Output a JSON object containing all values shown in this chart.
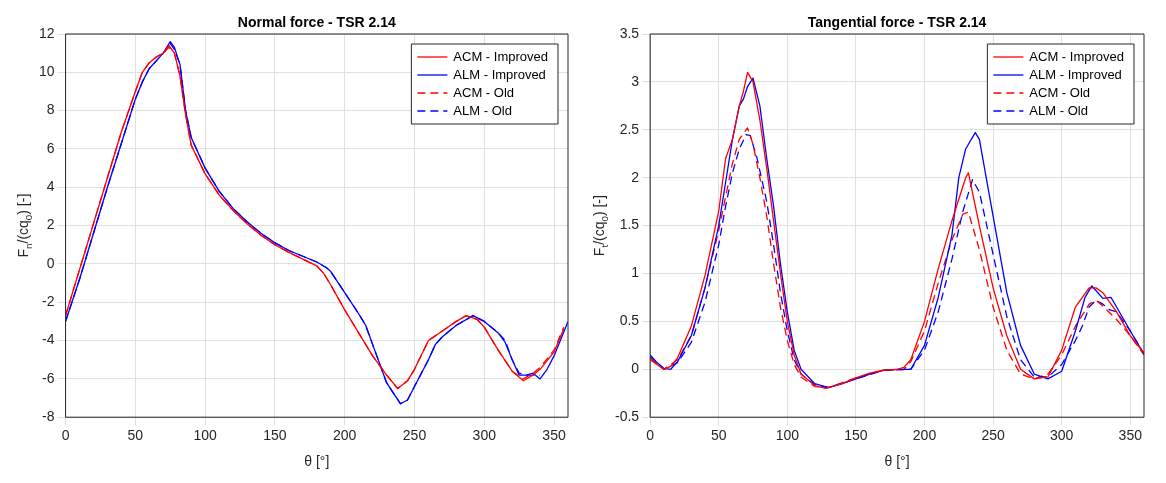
{
  "chart_data": [
    {
      "type": "line",
      "title": "Normal force - TSR 2.14",
      "xlabel": "θ [°]",
      "ylabel": "F$_{n}$/(cq$_{0}$) [-]",
      "xlim": [
        0,
        360
      ],
      "xticks": [
        0,
        50,
        100,
        150,
        200,
        250,
        300,
        350
      ],
      "ylim": [
        -8,
        12
      ],
      "yticks": [
        -8,
        -6,
        -4,
        -2,
        0,
        2,
        4,
        6,
        8,
        10,
        12
      ],
      "grid": true,
      "legend": "top right",
      "series": [
        {
          "name": "ACM - Improved",
          "color": "#ff0000",
          "line_style": "solid",
          "x": [
            0,
            10,
            20,
            30,
            40,
            50,
            55,
            60,
            65,
            70,
            74,
            78,
            82,
            86,
            90,
            100,
            110,
            120,
            130,
            140,
            150,
            160,
            170,
            180,
            185,
            190,
            200,
            210,
            220,
            230,
            238,
            245,
            250,
            260,
            270,
            280,
            287,
            295,
            300,
            310,
            320,
            328,
            335,
            340,
            350,
            357
          ],
          "values": [
            -2.7,
            -0.3,
            2.1,
            4.5,
            6.9,
            9.0,
            10.0,
            10.5,
            10.8,
            11.0,
            11.4,
            11.0,
            9.8,
            7.8,
            6.2,
            4.7,
            3.6,
            2.8,
            2.1,
            1.5,
            1.0,
            0.6,
            0.25,
            -0.1,
            -0.5,
            -1.1,
            -2.4,
            -3.6,
            -4.8,
            -5.8,
            -6.5,
            -6.1,
            -5.5,
            -4.0,
            -3.5,
            -3.0,
            -2.7,
            -2.9,
            -3.3,
            -4.5,
            -5.6,
            -6.1,
            -5.8,
            -5.5,
            -4.6,
            -3.4
          ]
        },
        {
          "name": "ALM - Improved",
          "color": "#0000ff",
          "line_style": "solid",
          "x": [
            0,
            10,
            20,
            30,
            40,
            50,
            55,
            60,
            65,
            70,
            75,
            78,
            82,
            86,
            90,
            100,
            110,
            120,
            130,
            140,
            150,
            160,
            170,
            180,
            187,
            190,
            200,
            210,
            215,
            220,
            230,
            240,
            245,
            250,
            260,
            265,
            270,
            280,
            292,
            300,
            310,
            315,
            320,
            325,
            330,
            335,
            340,
            345,
            350,
            360
          ],
          "values": [
            -3.0,
            -0.8,
            1.6,
            4.0,
            6.3,
            8.6,
            9.5,
            10.2,
            10.6,
            11.0,
            11.6,
            11.3,
            10.4,
            8.0,
            6.6,
            5.0,
            3.8,
            2.9,
            2.2,
            1.6,
            1.1,
            0.7,
            0.4,
            0.1,
            -0.2,
            -0.4,
            -1.5,
            -2.6,
            -3.2,
            -4.2,
            -6.2,
            -7.3,
            -7.1,
            -6.4,
            -5.0,
            -4.2,
            -3.8,
            -3.2,
            -2.7,
            -3.0,
            -3.6,
            -4.1,
            -5.0,
            -5.8,
            -5.8,
            -5.7,
            -6.0,
            -5.5,
            -4.8,
            -3.0
          ]
        },
        {
          "name": "ACM - Old",
          "color": "#ff0000",
          "line_style": "dashed",
          "x": [
            0,
            10,
            20,
            30,
            40,
            50,
            55,
            60,
            65,
            70,
            74,
            78,
            82,
            86,
            90,
            100,
            110,
            120,
            130,
            140,
            150,
            160,
            170,
            180,
            185,
            190,
            200,
            210,
            220,
            230,
            238,
            245,
            250,
            260,
            270,
            280,
            287,
            295,
            300,
            310,
            320,
            328,
            335,
            340,
            350,
            357
          ],
          "values": [
            -2.7,
            -0.3,
            2.1,
            4.5,
            6.9,
            9.0,
            10.0,
            10.5,
            10.8,
            11.0,
            11.3,
            11.0,
            9.8,
            7.8,
            6.2,
            4.7,
            3.6,
            2.8,
            2.1,
            1.5,
            1.0,
            0.6,
            0.25,
            -0.1,
            -0.5,
            -1.1,
            -2.4,
            -3.6,
            -4.8,
            -5.8,
            -6.5,
            -6.1,
            -5.5,
            -4.0,
            -3.5,
            -3.0,
            -2.7,
            -2.9,
            -3.3,
            -4.5,
            -5.6,
            -6.0,
            -5.7,
            -5.4,
            -4.5,
            -3.3
          ]
        },
        {
          "name": "ALM - Old",
          "color": "#0000ff",
          "line_style": "dashed",
          "x": [
            0,
            10,
            20,
            30,
            40,
            50,
            55,
            60,
            65,
            70,
            75,
            78,
            82,
            86,
            90,
            100,
            110,
            120,
            130,
            140,
            150,
            160,
            170,
            180,
            187,
            190,
            200,
            210,
            215,
            220,
            230,
            240,
            245,
            250,
            260,
            265,
            270,
            280,
            292,
            300,
            310,
            315,
            320,
            325,
            330,
            335,
            340
          ],
          "values": [
            -3.0,
            -0.8,
            1.6,
            4.0,
            6.3,
            8.6,
            9.5,
            10.2,
            10.6,
            11.0,
            11.5,
            11.2,
            10.4,
            8.0,
            6.6,
            5.0,
            3.8,
            2.9,
            2.2,
            1.6,
            1.1,
            0.7,
            0.4,
            0.1,
            -0.2,
            -0.4,
            -1.5,
            -2.6,
            -3.2,
            -4.2,
            -6.2,
            -7.3,
            -7.1,
            -6.4,
            -5.0,
            -4.2,
            -3.8,
            -3.2,
            -2.7,
            -3.0,
            -3.6,
            -4.0,
            -5.0,
            -5.7,
            -5.8,
            -5.8,
            -5.8
          ]
        }
      ]
    },
    {
      "type": "line",
      "title": "Tangential force - TSR 2.14",
      "xlabel": "θ [°]",
      "ylabel": "F$_{t}$/(cq$_{0}$) [-]",
      "xlim": [
        0,
        360
      ],
      "xticks": [
        0,
        50,
        100,
        150,
        200,
        250,
        300,
        350
      ],
      "ylim": [
        -0.5,
        3.5
      ],
      "yticks": [
        -0.5,
        0,
        0.5,
        1,
        1.5,
        2,
        2.5,
        3,
        3.5
      ],
      "grid": true,
      "legend": "top right",
      "series": [
        {
          "name": "ACM - Improved",
          "color": "#ff0000",
          "line_style": "solid",
          "x": [
            0,
            5,
            10,
            15,
            20,
            30,
            40,
            50,
            55,
            60,
            65,
            68,
            71,
            75,
            80,
            85,
            90,
            95,
            100,
            105,
            110,
            120,
            128,
            140,
            150,
            160,
            170,
            180,
            185,
            190,
            200,
            210,
            220,
            230,
            232,
            240,
            250,
            260,
            270,
            280,
            290,
            300,
            310,
            320,
            325,
            330,
            340,
            350,
            360
          ],
          "values": [
            0.12,
            0.05,
            0.0,
            0.03,
            0.12,
            0.45,
            0.98,
            1.65,
            2.2,
            2.4,
            2.75,
            2.9,
            3.1,
            3.0,
            2.6,
            2.1,
            1.55,
            1.0,
            0.5,
            0.15,
            -0.05,
            -0.17,
            -0.2,
            -0.15,
            -0.09,
            -0.04,
            -0.01,
            0.0,
            0.02,
            0.1,
            0.5,
            1.05,
            1.55,
            2.0,
            2.05,
            1.5,
            0.85,
            0.35,
            0.0,
            -0.1,
            -0.08,
            0.2,
            0.65,
            0.85,
            0.85,
            0.8,
            0.6,
            0.35,
            0.17
          ]
        },
        {
          "name": "ALM - Improved",
          "color": "#0000ff",
          "line_style": "solid",
          "x": [
            0,
            5,
            10,
            15,
            20,
            30,
            40,
            50,
            55,
            60,
            65,
            68,
            71,
            75,
            80,
            85,
            90,
            95,
            100,
            105,
            110,
            120,
            130,
            140,
            150,
            160,
            170,
            180,
            190,
            200,
            210,
            220,
            225,
            230,
            237,
            240,
            250,
            260,
            270,
            280,
            290,
            300,
            310,
            317,
            322,
            330,
            336,
            340,
            350,
            360
          ],
          "values": [
            0.15,
            0.07,
            0.01,
            0.0,
            0.08,
            0.35,
            0.85,
            1.5,
            1.95,
            2.4,
            2.75,
            2.82,
            2.95,
            3.04,
            2.75,
            2.2,
            1.7,
            1.1,
            0.6,
            0.2,
            0.0,
            -0.15,
            -0.19,
            -0.15,
            -0.1,
            -0.05,
            -0.01,
            0.0,
            0.0,
            0.25,
            0.75,
            1.4,
            2.0,
            2.3,
            2.47,
            2.4,
            1.6,
            0.8,
            0.25,
            -0.05,
            -0.1,
            -0.02,
            0.4,
            0.75,
            0.87,
            0.74,
            0.75,
            0.65,
            0.4,
            0.16
          ]
        },
        {
          "name": "ACM - Old",
          "color": "#ff0000",
          "line_style": "dashed",
          "x": [
            0,
            10,
            20,
            30,
            40,
            50,
            55,
            60,
            65,
            71,
            75,
            80,
            85,
            90,
            95,
            100,
            105,
            110,
            120,
            130,
            150,
            170,
            185,
            190,
            200,
            210,
            220,
            228,
            232,
            240,
            250,
            260,
            270,
            280,
            290,
            300,
            310,
            320,
            325,
            330,
            340,
            350,
            360
          ],
          "values": [
            0.1,
            0.0,
            0.1,
            0.35,
            0.85,
            1.45,
            1.8,
            2.15,
            2.4,
            2.52,
            2.35,
            2.0,
            1.6,
            1.1,
            0.65,
            0.3,
            0.05,
            -0.08,
            -0.18,
            -0.19,
            -0.09,
            -0.01,
            0.0,
            0.08,
            0.4,
            0.9,
            1.35,
            1.62,
            1.64,
            1.25,
            0.65,
            0.2,
            -0.05,
            -0.1,
            -0.05,
            0.15,
            0.45,
            0.68,
            0.72,
            0.66,
            0.52,
            0.35,
            0.15
          ]
        },
        {
          "name": "ALM - Old",
          "color": "#0000ff",
          "line_style": "dashed",
          "x": [
            0,
            10,
            20,
            30,
            40,
            50,
            55,
            60,
            65,
            70,
            73,
            78,
            85,
            90,
            95,
            100,
            105,
            110,
            120,
            130,
            150,
            170,
            190,
            200,
            210,
            220,
            228,
            235,
            240,
            250,
            260,
            270,
            280,
            290,
            300,
            310,
            315,
            320,
            325,
            330,
            335,
            340,
            350,
            360
          ],
          "values": [
            0.13,
            0.0,
            0.07,
            0.28,
            0.7,
            1.3,
            1.7,
            2.05,
            2.3,
            2.45,
            2.44,
            2.2,
            1.75,
            1.3,
            0.8,
            0.4,
            0.1,
            -0.05,
            -0.16,
            -0.19,
            -0.1,
            -0.01,
            0.0,
            0.2,
            0.6,
            1.15,
            1.65,
            1.98,
            1.85,
            1.2,
            0.55,
            0.1,
            -0.08,
            -0.08,
            0.05,
            0.3,
            0.45,
            0.65,
            0.72,
            0.68,
            0.62,
            0.6,
            0.4,
            0.16
          ]
        }
      ]
    }
  ]
}
